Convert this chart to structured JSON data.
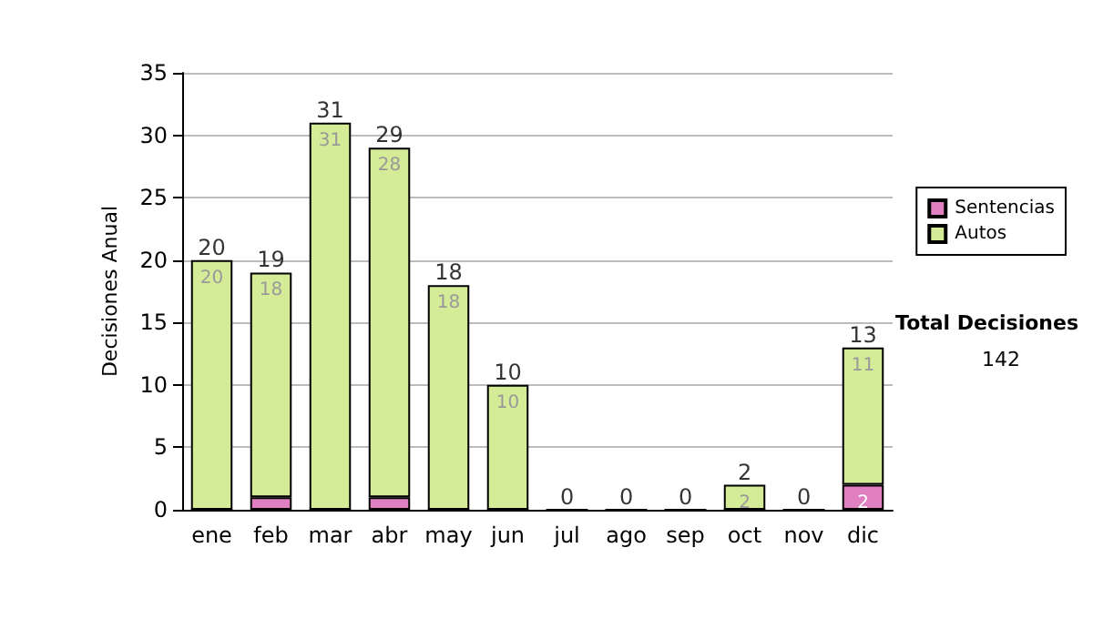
{
  "chart_data": {
    "type": "bar",
    "ylabel": "Decisiones Anual",
    "stacked": true,
    "categories": [
      "ene",
      "feb",
      "mar",
      "abr",
      "may",
      "jun",
      "jul",
      "ago",
      "sep",
      "oct",
      "nov",
      "dic"
    ],
    "series": [
      {
        "name": "Sentencias",
        "color": "#e080c0",
        "values": [
          0,
          1,
          0,
          1,
          0,
          0,
          0,
          0,
          0,
          0,
          0,
          2
        ],
        "value_labels": [
          null,
          null,
          null,
          null,
          null,
          null,
          null,
          null,
          null,
          null,
          null,
          "2"
        ]
      },
      {
        "name": "Autos",
        "color": "#d4eb98",
        "values": [
          20,
          18,
          31,
          28,
          18,
          10,
          0,
          0,
          0,
          2,
          0,
          11
        ],
        "value_labels": [
          "20",
          "18",
          "31",
          "28",
          "18",
          "10",
          null,
          null,
          null,
          "2",
          null,
          "11"
        ]
      }
    ],
    "totals": [
      "20",
      "19",
      "31",
      "29",
      "18",
      "10",
      "0",
      "0",
      "0",
      "2",
      "0",
      "13"
    ],
    "ylim": [
      0,
      35
    ],
    "yticks": [
      0,
      5,
      10,
      15,
      20,
      25,
      30,
      35
    ],
    "grid": "y",
    "legend": "right",
    "annotations": [
      "Total Decisiones",
      "142"
    ]
  }
}
